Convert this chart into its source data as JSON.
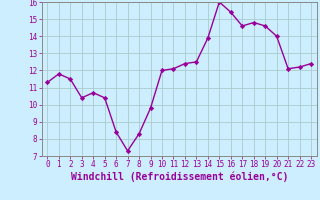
{
  "x": [
    0,
    1,
    2,
    3,
    4,
    5,
    6,
    7,
    8,
    9,
    10,
    11,
    12,
    13,
    14,
    15,
    16,
    17,
    18,
    19,
    20,
    21,
    22,
    23
  ],
  "y": [
    11.3,
    11.8,
    11.5,
    10.4,
    10.7,
    10.4,
    8.4,
    7.3,
    8.3,
    9.8,
    12.0,
    12.1,
    12.4,
    12.5,
    13.9,
    16.0,
    15.4,
    14.6,
    14.8,
    14.6,
    14.0,
    12.1,
    12.2,
    12.4
  ],
  "line_color": "#990099",
  "marker": "D",
  "marker_size": 2.2,
  "bg_color": "#cceeff",
  "grid_color": "#aacccc",
  "spine_color": "#888888",
  "xlabel": "Windchill (Refroidissement éolien,°C)",
  "xlabel_color": "#990099",
  "tick_color": "#990099",
  "ylim": [
    7,
    16
  ],
  "xlim": [
    -0.5,
    23.5
  ],
  "yticks": [
    7,
    8,
    9,
    10,
    11,
    12,
    13,
    14,
    15,
    16
  ],
  "xticks": [
    0,
    1,
    2,
    3,
    4,
    5,
    6,
    7,
    8,
    9,
    10,
    11,
    12,
    13,
    14,
    15,
    16,
    17,
    18,
    19,
    20,
    21,
    22,
    23
  ],
  "tick_fontsize": 5.5,
  "xlabel_fontsize": 7.0,
  "line_width": 1.0
}
